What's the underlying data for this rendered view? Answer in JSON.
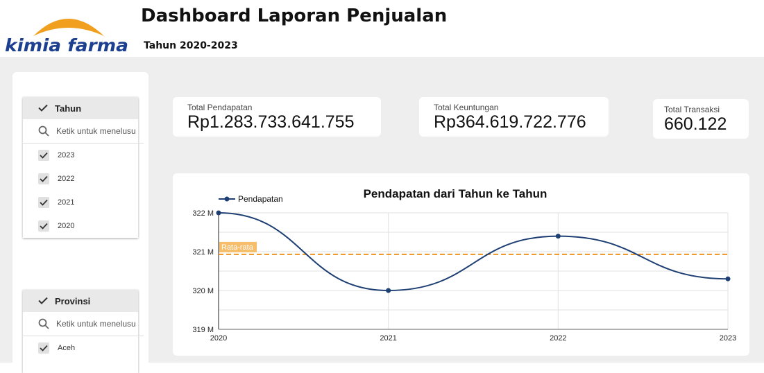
{
  "header": {
    "logo_text": "kimia farma",
    "title": "Dashboard Laporan Penjualan",
    "subtitle": "Tahun 2020-2023"
  },
  "filters": {
    "tahun": {
      "label": "Tahun",
      "search_placeholder": "Ketik untuk menelusu",
      "options": [
        {
          "label": "2023",
          "checked": true
        },
        {
          "label": "2022",
          "checked": true
        },
        {
          "label": "2021",
          "checked": true
        },
        {
          "label": "2020",
          "checked": true
        }
      ]
    },
    "provinsi": {
      "label": "Provinsi",
      "search_placeholder": "Ketik untuk menelusu",
      "options": [
        {
          "label": "Aceh",
          "checked": true
        }
      ]
    }
  },
  "kpis": {
    "pendapatan": {
      "label": "Total Pendapatan",
      "value": "Rp1.283.733.641.755"
    },
    "keuntungan": {
      "label": "Total Keuntungan",
      "value": "Rp364.619.722.776"
    },
    "transaksi": {
      "label": "Total Transaksi",
      "value": "660.122"
    }
  },
  "colors": {
    "brand_blue": "#1d3f8f",
    "brand_orange": "#f0a01e",
    "line": "#1e3f73",
    "average": "#f0921e"
  },
  "chart_data": {
    "type": "line",
    "title": "Pendapatan dari Tahun ke Tahun",
    "categories": [
      "2020",
      "2021",
      "2022",
      "2023"
    ],
    "series": [
      {
        "name": "Pendapatan",
        "values": [
          322.0,
          320.0,
          321.4,
          320.3
        ]
      }
    ],
    "y_ticks": [
      "319 M",
      "320 M",
      "321 M",
      "322 M"
    ],
    "ylim": [
      319,
      322
    ],
    "average": {
      "label": "Rata-rata",
      "value": 320.93
    },
    "grid": true,
    "legend": "top-left",
    "smooth": true
  }
}
